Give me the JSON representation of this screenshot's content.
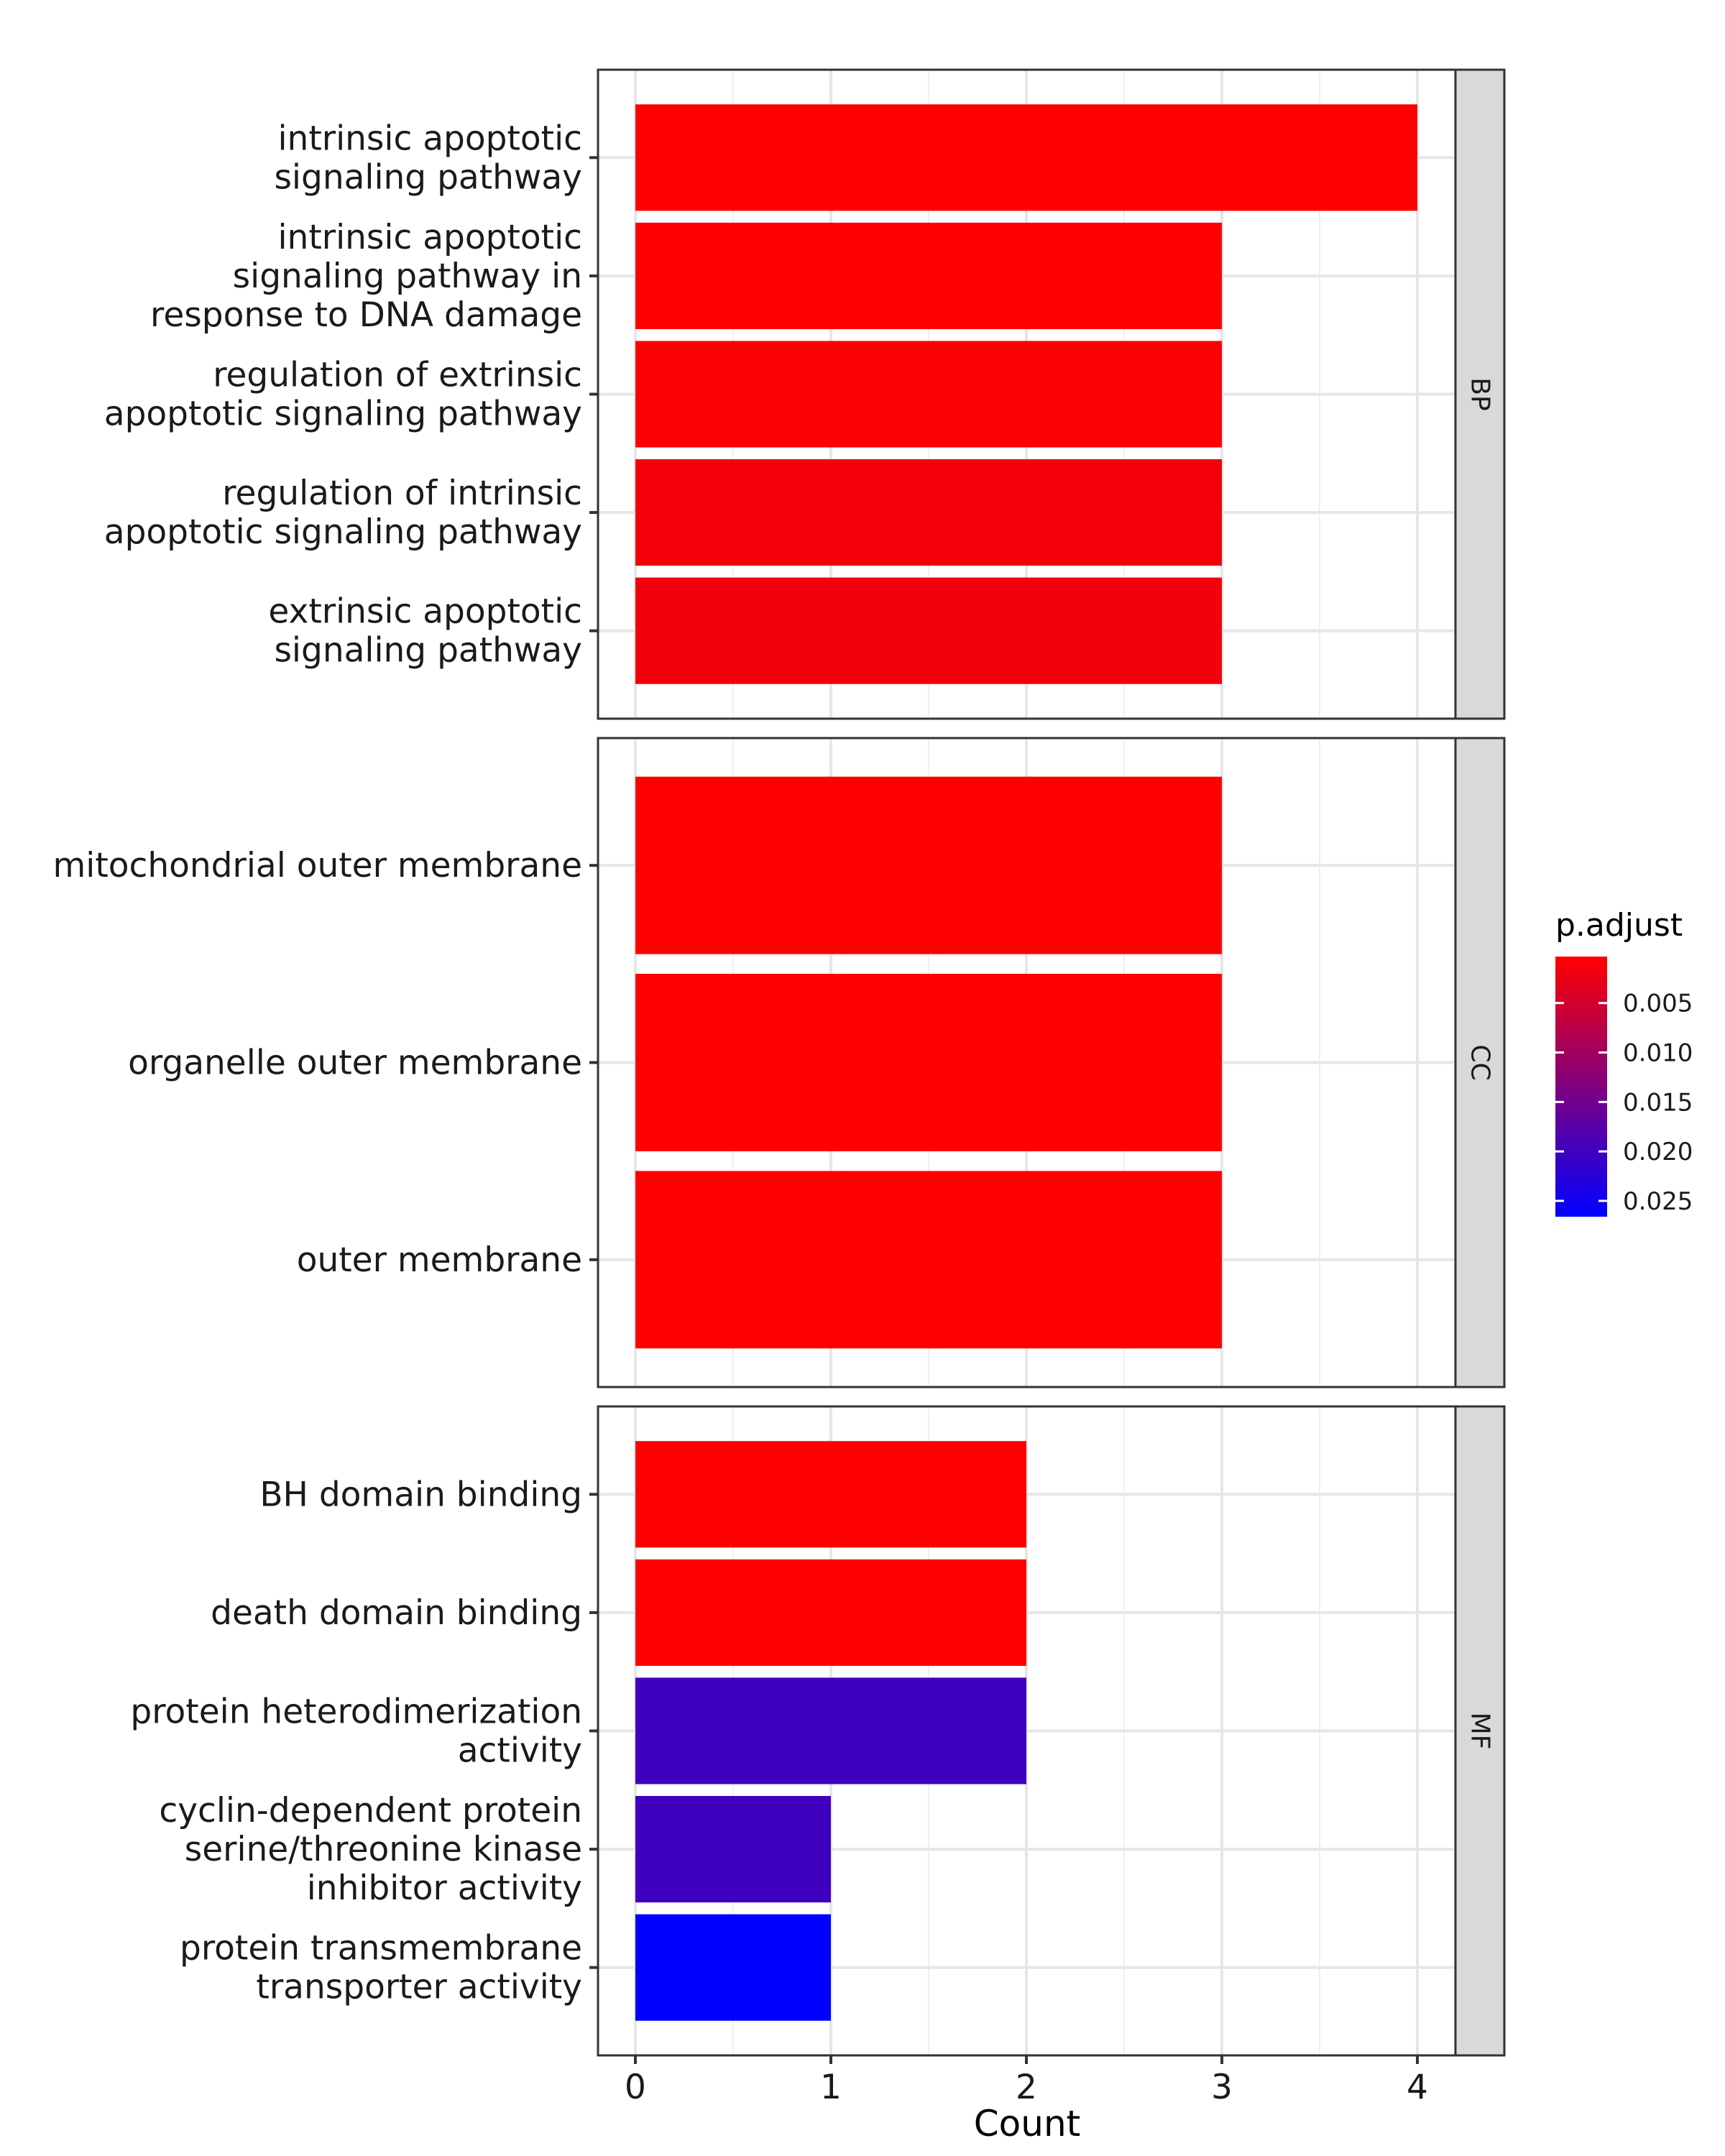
{
  "chart_data": {
    "type": "bar",
    "orientation": "horizontal",
    "xlabel": "Count",
    "ylabel": "",
    "xlim": [
      0,
      4
    ],
    "x_ticks": [
      "0",
      "1",
      "2",
      "3",
      "4"
    ],
    "grid": true,
    "legend": {
      "title": "p.adjust",
      "placement": "right",
      "scale_range": [
        0.0003,
        0.0266
      ],
      "ticks": [
        0.005,
        0.01,
        0.015,
        0.02,
        0.025
      ],
      "tick_labels": [
        "0.005",
        "0.010",
        "0.015",
        "0.020",
        "0.025"
      ],
      "low_color": "#ff0000",
      "high_color": "#0000ff"
    },
    "panels": [
      {
        "facet": "BP",
        "bars": [
          {
            "label": [
              "intrinsic apoptotic",
              "signaling pathway"
            ],
            "count": 4,
            "p_adjust": 0.0004
          },
          {
            "label": [
              "intrinsic apoptotic",
              "signaling pathway in",
              "response to DNA damage"
            ],
            "count": 3,
            "p_adjust": 0.0003
          },
          {
            "label": [
              "regulation of extrinsic",
              "apoptotic signaling pathway"
            ],
            "count": 3,
            "p_adjust": 0.0006
          },
          {
            "label": [
              "regulation of intrinsic",
              "apoptotic signaling pathway"
            ],
            "count": 3,
            "p_adjust": 0.0013
          },
          {
            "label": [
              "extrinsic apoptotic",
              "signaling pathway"
            ],
            "count": 3,
            "p_adjust": 0.0015
          }
        ]
      },
      {
        "facet": "CC",
        "bars": [
          {
            "label": [
              "mitochondrial outer membrane"
            ],
            "count": 3,
            "p_adjust": 0.0003
          },
          {
            "label": [
              "organelle outer membrane"
            ],
            "count": 3,
            "p_adjust": 0.0003
          },
          {
            "label": [
              "outer membrane"
            ],
            "count": 3,
            "p_adjust": 0.0003
          }
        ]
      },
      {
        "facet": "MF",
        "bars": [
          {
            "label": [
              "BH domain binding"
            ],
            "count": 2,
            "p_adjust": 0.0003
          },
          {
            "label": [
              "death domain binding"
            ],
            "count": 2,
            "p_adjust": 0.0003
          },
          {
            "label": [
              "protein heterodimerization",
              "activity"
            ],
            "count": 2,
            "p_adjust": 0.02
          },
          {
            "label": [
              "cyclin-dependent protein",
              "serine/threonine kinase",
              "inhibitor activity"
            ],
            "count": 1,
            "p_adjust": 0.02
          },
          {
            "label": [
              "protein transmembrane",
              "transporter activity"
            ],
            "count": 1,
            "p_adjust": 0.0266
          }
        ]
      }
    ]
  }
}
